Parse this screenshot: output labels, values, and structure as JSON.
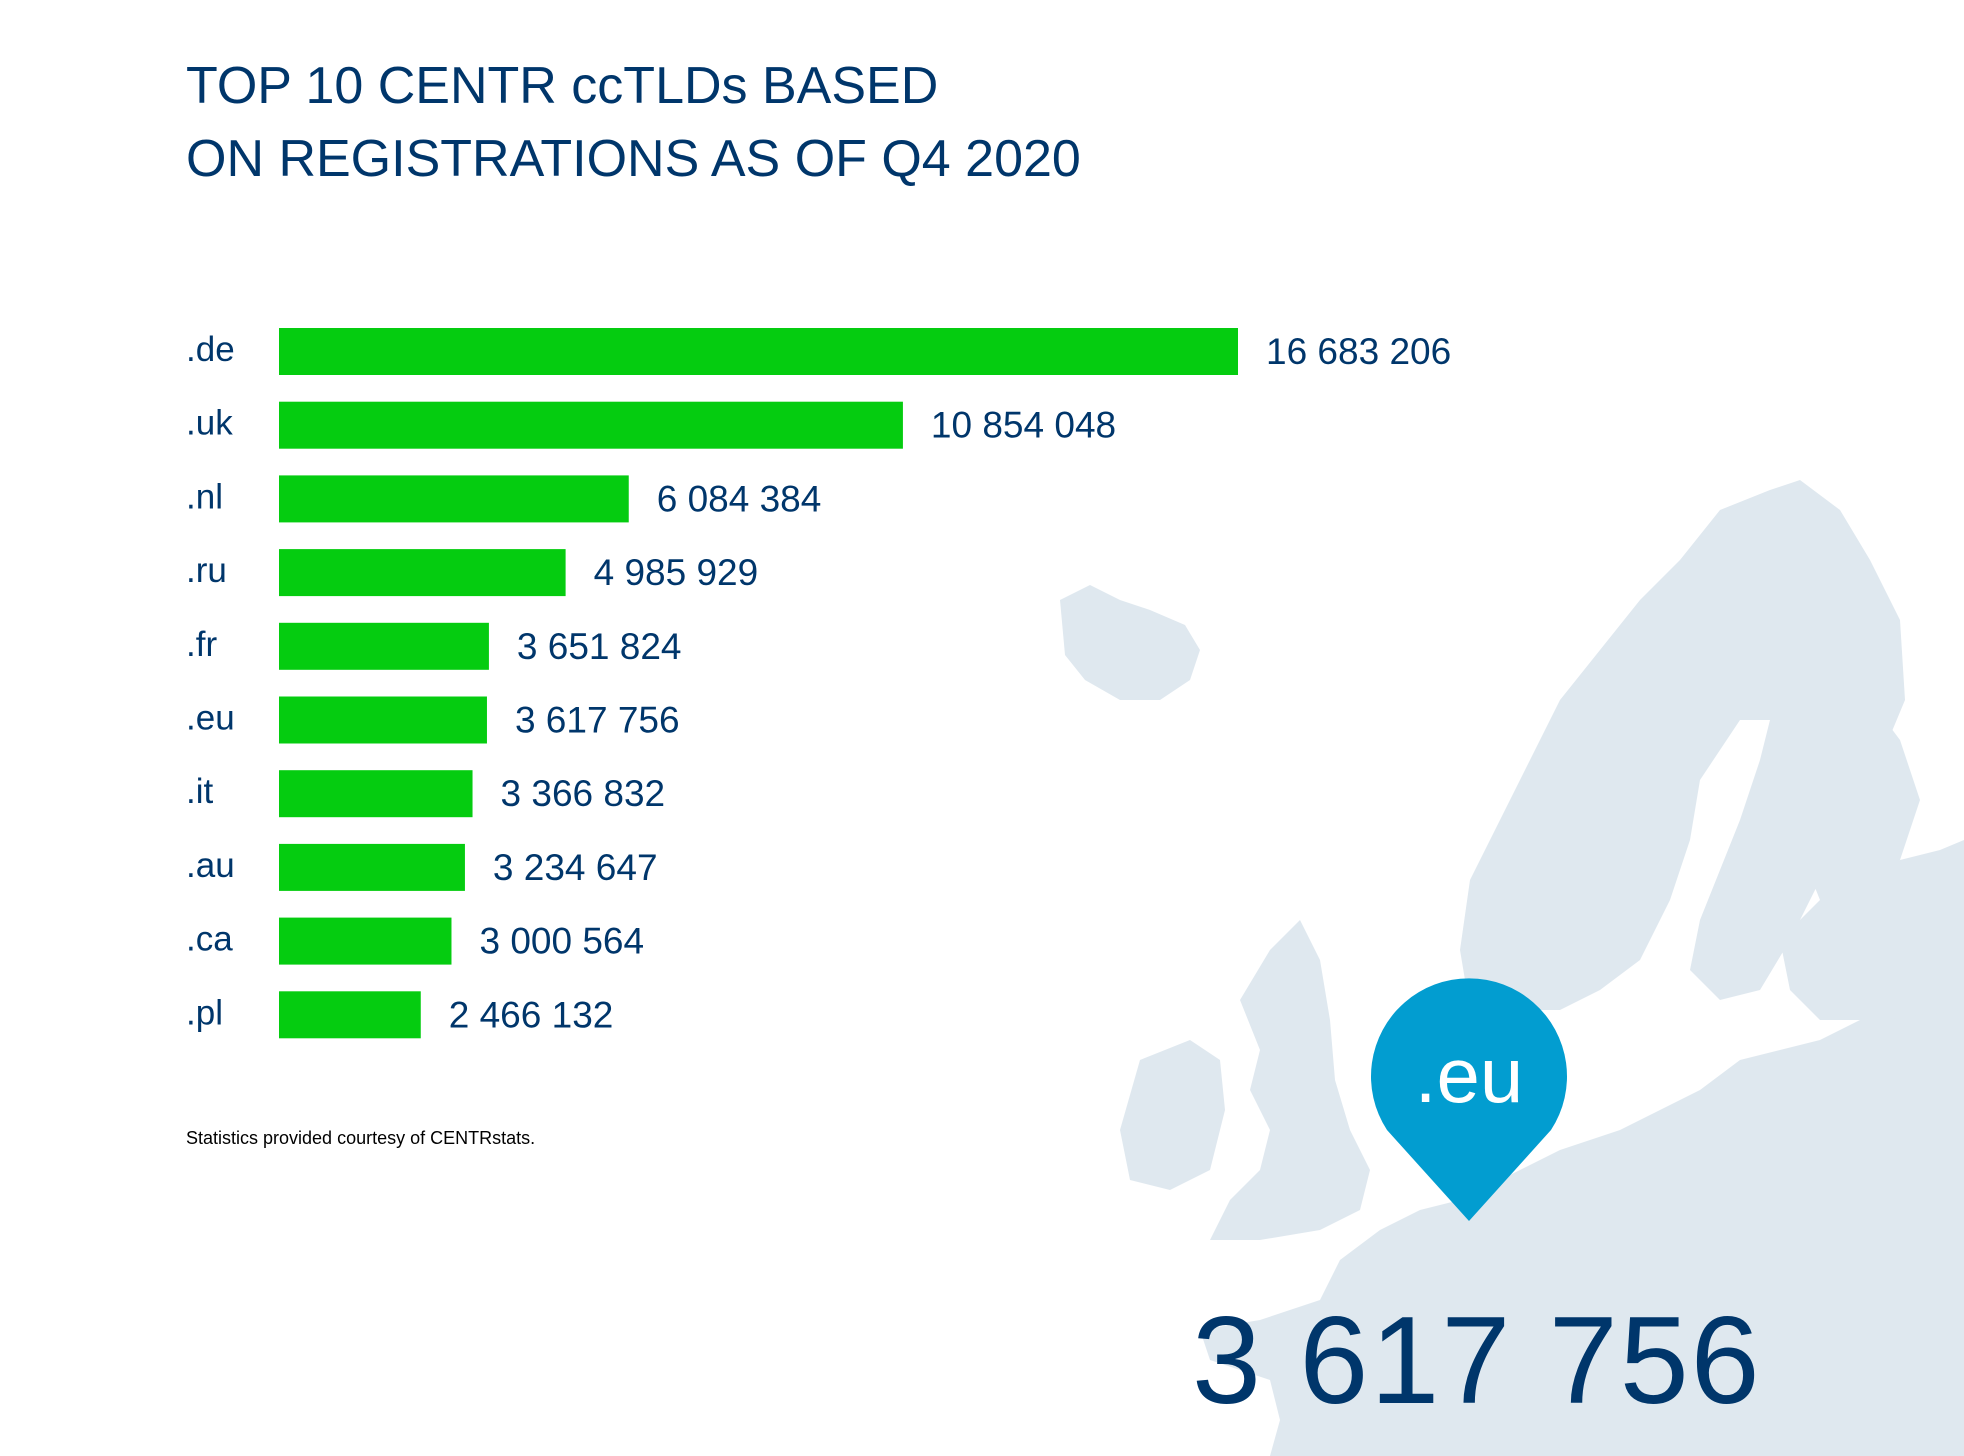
{
  "title_lines": [
    "TOP 10 CENTR ccTLDs BASED",
    "ON REGISTRATIONS AS OF Q4 2020"
  ],
  "chart_data": {
    "type": "bar",
    "orientation": "horizontal",
    "title": "TOP 10 CENTR ccTLDs BASED ON REGISTRATIONS AS OF Q4 2020",
    "categories": [
      ".de",
      ".uk",
      ".nl",
      ".ru",
      ".fr",
      ".eu",
      ".it",
      ".au",
      ".ca",
      ".pl"
    ],
    "values": [
      16683206,
      10854048,
      6084384,
      4985929,
      3651824,
      3617756,
      3366832,
      3234647,
      3000564,
      2466132
    ],
    "value_labels": [
      "16 683 206",
      "10 854 048",
      "6 084 384",
      "4 985 929",
      "3 651 824",
      "3 617 756",
      "3 366 832",
      "3 234 647",
      "3 000 564",
      "2 466 132"
    ],
    "bar_color": "#05cc10",
    "grid": false,
    "axes_visible": false
  },
  "footnote": "Statistics provided courtesy of CENTRstats.",
  "highlight": {
    "label": ".eu",
    "value": "3 617 756",
    "pin_color": "#029dd0",
    "map_color": "#dfe8ef",
    "text_color": "#00366b"
  }
}
